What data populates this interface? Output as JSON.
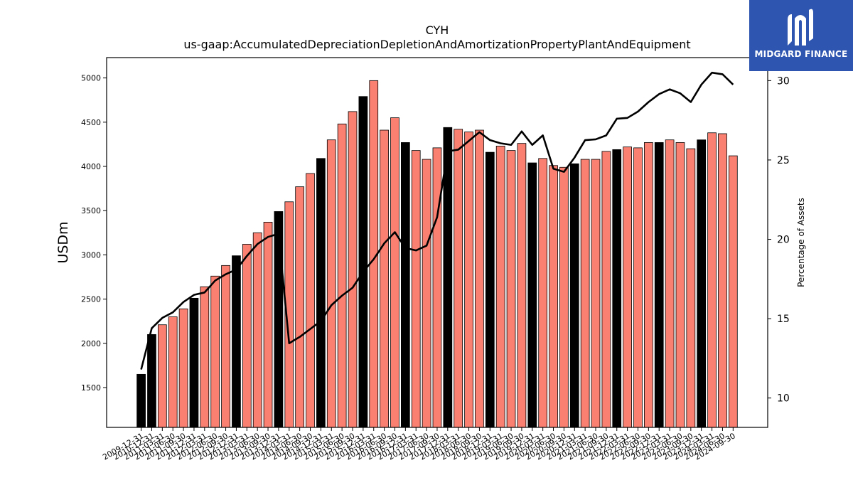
{
  "brand": {
    "name": "MIDGARD FINANCE",
    "color": "#2e55b0"
  },
  "chart_data": {
    "type": "bar",
    "title": "CYH",
    "subtitle": "us-gaap:AccumulatedDepreciationDepletionAndAmortizationPropertyPlantAndEquipment",
    "ylabel": "USDm",
    "y2label": "Percentage of Assets",
    "ylim": [
      1050,
      5230
    ],
    "y2lim": [
      8.15,
      31.45
    ],
    "yticks": [
      1500,
      2000,
      2500,
      3000,
      3500,
      4000,
      4500,
      5000
    ],
    "y2ticks": [
      10,
      15,
      20,
      25,
      30
    ],
    "colors": {
      "annual": "#000000",
      "quarterly": "#fa8072",
      "line": "#000000"
    },
    "categories": [
      "2009-12-31",
      "2010-12-31",
      "2011-03-31",
      "2011-06-30",
      "2011-09-30",
      "2011-12-31",
      "2012-03-31",
      "2012-06-30",
      "2012-09-30",
      "2012-12-31",
      "2013-03-31",
      "2013-06-30",
      "2013-09-30",
      "2013-12-31",
      "2014-03-31",
      "2014-06-30",
      "2014-09-30",
      "2014-12-31",
      "2015-03-31",
      "2015-06-30",
      "2015-09-30",
      "2015-12-31",
      "2016-03-31",
      "2016-06-30",
      "2016-09-30",
      "2016-12-31",
      "2017-03-31",
      "2017-06-30",
      "2017-09-30",
      "2017-12-31",
      "2018-03-31",
      "2018-06-30",
      "2018-09-30",
      "2018-12-31",
      "2019-03-31",
      "2019-06-30",
      "2019-09-30",
      "2019-12-31",
      "2020-03-31",
      "2020-06-30",
      "2020-09-30",
      "2020-12-31",
      "2021-03-31",
      "2021-06-30",
      "2021-09-30",
      "2021-12-31",
      "2022-03-31",
      "2022-06-30",
      "2022-09-30",
      "2022-12-31",
      "2023-03-31",
      "2023-06-30",
      "2023-09-30",
      "2023-12-31",
      "2024-03-31",
      "2024-06-30",
      "2024-09-30"
    ],
    "series": [
      {
        "kind": "bar",
        "axis": "left",
        "values": [
          1650,
          2100,
          2210,
          2300,
          2390,
          2510,
          2640,
          2760,
          2880,
          2990,
          3120,
          3250,
          3370,
          3490,
          3600,
          3770,
          3920,
          4090,
          4300,
          4480,
          4620,
          4790,
          4970,
          4410,
          4550,
          4270,
          4180,
          4080,
          4210,
          4440,
          4420,
          4390,
          4410,
          4160,
          4230,
          4180,
          4260,
          4040,
          4090,
          4010,
          3990,
          4030,
          4080,
          4080,
          4170,
          4190,
          4220,
          4210,
          4270,
          4270,
          4300,
          4270,
          4200,
          4300,
          4380,
          4370,
          4120
        ],
        "annual": [
          true,
          true,
          false,
          false,
          false,
          true,
          false,
          false,
          false,
          true,
          false,
          false,
          false,
          true,
          false,
          false,
          false,
          true,
          false,
          false,
          false,
          true,
          false,
          false,
          false,
          true,
          false,
          false,
          false,
          true,
          false,
          false,
          false,
          true,
          false,
          false,
          false,
          true,
          false,
          false,
          false,
          true,
          false,
          false,
          false,
          true,
          false,
          false,
          false,
          true,
          false,
          false,
          false,
          true,
          false,
          false,
          false
        ]
      },
      {
        "kind": "line",
        "axis": "right",
        "values": [
          11.8,
          14.4,
          15.05,
          15.4,
          16.05,
          16.5,
          16.65,
          17.4,
          17.8,
          18.1,
          18.95,
          19.7,
          20.15,
          20.35,
          13.45,
          13.85,
          14.35,
          14.85,
          15.85,
          16.45,
          16.95,
          17.95,
          18.75,
          19.75,
          20.45,
          19.45,
          19.3,
          19.6,
          21.4,
          25.55,
          25.65,
          26.2,
          26.75,
          26.25,
          26.05,
          25.95,
          26.8,
          25.95,
          26.55,
          24.45,
          24.25,
          25.15,
          26.25,
          26.3,
          26.55,
          27.6,
          27.65,
          28.05,
          28.65,
          29.15,
          29.45,
          29.2,
          28.65,
          29.75,
          30.5,
          30.4,
          29.75
        ]
      }
    ]
  }
}
